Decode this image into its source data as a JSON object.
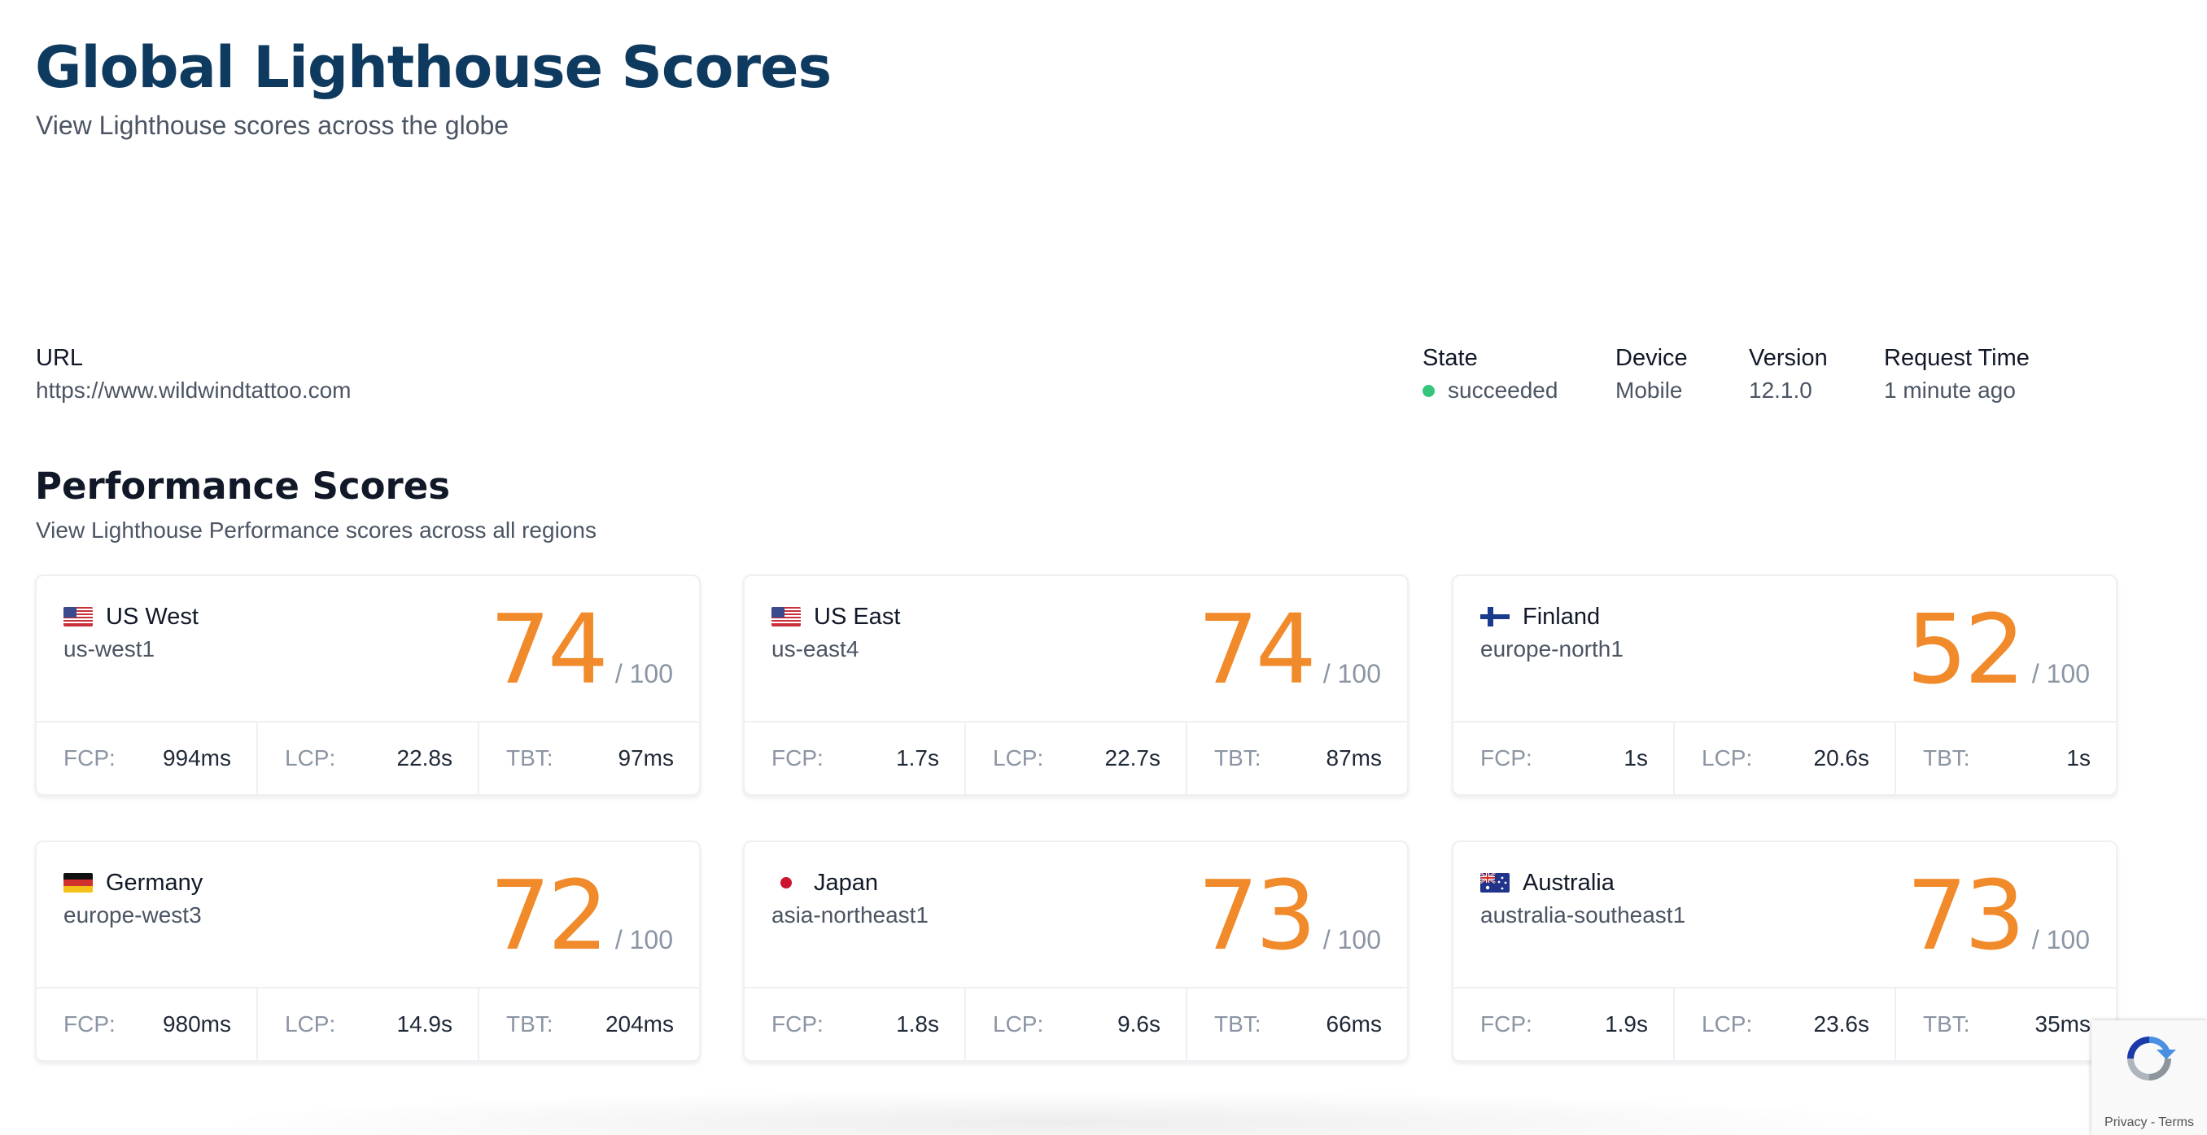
{
  "header": {
    "title": "Global Lighthouse Scores",
    "subtitle": "View Lighthouse scores across the globe"
  },
  "meta": {
    "url_label": "URL",
    "url_value": "https://www.wildwindtattoo.com",
    "state_label": "State",
    "state_value": "succeeded",
    "state_color": "#34c77b",
    "device_label": "Device",
    "device_value": "Mobile",
    "version_label": "Version",
    "version_value": "12.1.0",
    "request_time_label": "Request Time",
    "request_time_value": "1 minute ago"
  },
  "performance": {
    "title": "Performance Scores",
    "subtitle": "View Lighthouse Performance scores across all regions",
    "score_color": "#f08a2a",
    "metric_labels": {
      "fcp": "FCP:",
      "lcp": "LCP:",
      "tbt": "TBT:"
    },
    "regions": [
      {
        "name": "US West",
        "code": "us-west1",
        "flag": "us-flag-icon",
        "score": "74",
        "max": "/ 100",
        "fcp": "994ms",
        "lcp": "22.8s",
        "tbt": "97ms"
      },
      {
        "name": "US East",
        "code": "us-east4",
        "flag": "us-flag-icon",
        "score": "74",
        "max": "/ 100",
        "fcp": "1.7s",
        "lcp": "22.7s",
        "tbt": "87ms"
      },
      {
        "name": "Finland",
        "code": "europe-north1",
        "flag": "finland-flag-icon",
        "score": "52",
        "max": "/ 100",
        "fcp": "1s",
        "lcp": "20.6s",
        "tbt": "1s"
      },
      {
        "name": "Germany",
        "code": "europe-west3",
        "flag": "germany-flag-icon",
        "score": "72",
        "max": "/ 100",
        "fcp": "980ms",
        "lcp": "14.9s",
        "tbt": "204ms"
      },
      {
        "name": "Japan",
        "code": "asia-northeast1",
        "flag": "japan-flag-icon",
        "score": "73",
        "max": "/ 100",
        "fcp": "1.8s",
        "lcp": "9.6s",
        "tbt": "66ms"
      },
      {
        "name": "Australia",
        "code": "australia-southeast1",
        "flag": "australia-flag-icon",
        "score": "73",
        "max": "/ 100",
        "fcp": "1.9s",
        "lcp": "23.6s",
        "tbt": "35ms"
      }
    ]
  },
  "recaptcha": {
    "links": "Privacy - Terms"
  }
}
